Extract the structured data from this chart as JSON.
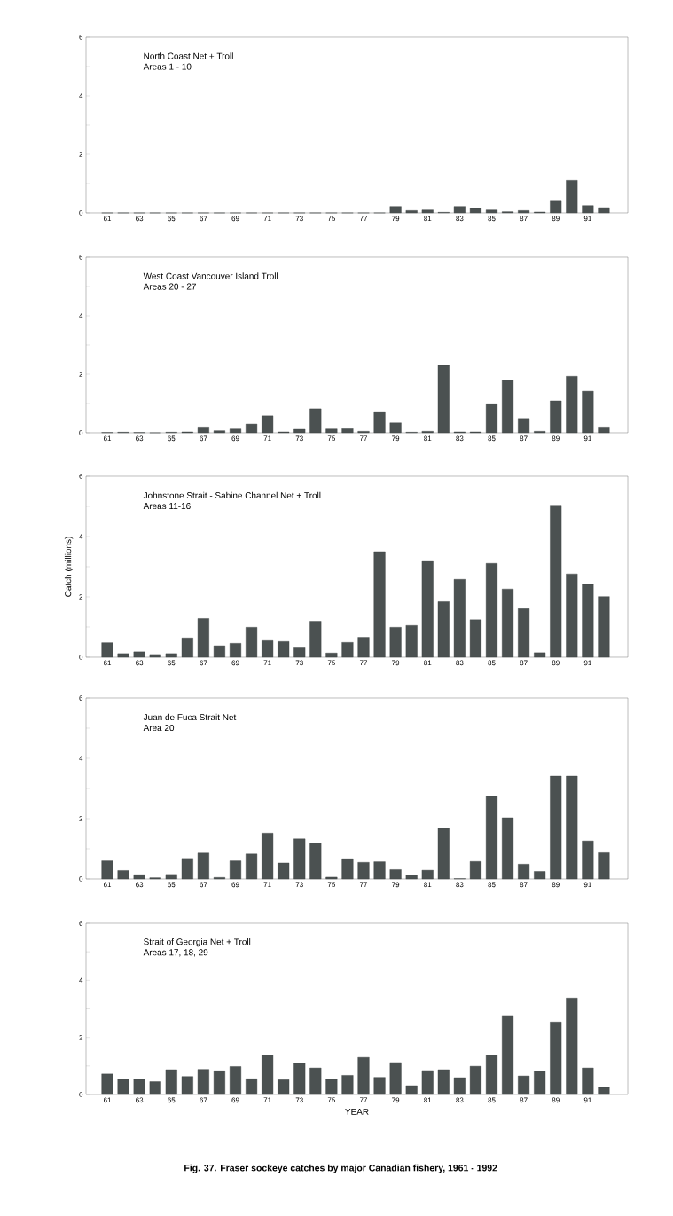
{
  "chart_data": [
    {
      "type": "bar",
      "title": "North Coast Net + Troll",
      "subtitle": "Areas 1 - 10",
      "color": "#4b5151",
      "categories": [
        "61",
        null,
        "63",
        null,
        "65",
        null,
        "67",
        null,
        "69",
        null,
        "71",
        null,
        "73",
        null,
        "75",
        null,
        "77",
        null,
        "79",
        null,
        "81",
        null,
        "83",
        null,
        "85",
        null,
        "87",
        null,
        "89",
        null,
        "91",
        null
      ],
      "values": [
        0,
        0,
        0,
        0,
        0,
        0,
        0,
        0,
        0,
        0,
        0,
        0,
        0,
        0,
        0,
        0,
        0,
        0,
        0.22,
        0.08,
        0.1,
        0.02,
        0.22,
        0.15,
        0.1,
        0.04,
        0.08,
        0.03,
        0.4,
        1.11,
        0.25,
        0.18
      ],
      "ylim": [
        0,
        6
      ],
      "yticks": [
        0,
        {
          "value": 1,
          "label": null
        },
        2,
        {
          "value": 3,
          "label": null
        },
        4,
        {
          "value": 5,
          "label": null
        },
        6
      ]
    },
    {
      "type": "bar",
      "title": "West Coast Vancouver Island Troll",
      "subtitle": "Areas 20 - 27",
      "color": "#4b5151",
      "categories": [
        "61",
        null,
        "63",
        null,
        "65",
        null,
        "67",
        null,
        "69",
        null,
        "71",
        null,
        "73",
        null,
        "75",
        null,
        "77",
        null,
        "79",
        null,
        "81",
        null,
        "83",
        null,
        "85",
        null,
        "87",
        null,
        "89",
        null,
        "91",
        null
      ],
      "values": [
        0.01,
        0.02,
        0.01,
        0,
        0.02,
        0.03,
        0.2,
        0.07,
        0.13,
        0.3,
        0.58,
        0.03,
        0.12,
        0.82,
        0.13,
        0.14,
        0.05,
        0.72,
        0.34,
        0.02,
        0.05,
        2.3,
        0.03,
        0.03,
        0.99,
        1.8,
        0.49,
        0.05,
        1.09,
        1.93,
        1.42,
        0.2
      ],
      "ylim": [
        0,
        6
      ],
      "yticks": [
        0,
        {
          "value": 1,
          "label": null
        },
        2,
        {
          "value": 3,
          "label": null
        },
        4,
        {
          "value": 5,
          "label": null
        },
        6
      ]
    },
    {
      "type": "bar",
      "title": "Johnstone Strait - Sabine Channel Net + Troll",
      "subtitle": "Areas 11-16",
      "ylabel": "Catch (millions)",
      "color": "#4b5151",
      "categories": [
        "61",
        null,
        "63",
        null,
        "65",
        null,
        "67",
        null,
        "69",
        null,
        "71",
        null,
        "73",
        null,
        "75",
        null,
        "77",
        null,
        "79",
        null,
        "81",
        null,
        "83",
        null,
        "85",
        null,
        "87",
        null,
        "89",
        null,
        "91",
        null
      ],
      "values": [
        0.48,
        0.12,
        0.18,
        0.09,
        0.12,
        0.64,
        1.28,
        0.38,
        0.46,
        0.99,
        0.55,
        0.52,
        0.31,
        1.19,
        0.14,
        0.49,
        0.66,
        3.5,
        0.99,
        1.05,
        3.2,
        1.84,
        2.58,
        1.24,
        3.11,
        2.26,
        1.61,
        0.15,
        5.04,
        2.76,
        2.41,
        2.01
      ],
      "ylim": [
        0,
        6
      ],
      "yticks": [
        0,
        {
          "value": 1,
          "label": null
        },
        2,
        {
          "value": 3,
          "label": null
        },
        4,
        {
          "value": 5,
          "label": null
        },
        6
      ]
    },
    {
      "type": "bar",
      "title": "Juan de Fuca Strait Net",
      "subtitle": "Area 20",
      "color": "#4b5151",
      "categories": [
        "61",
        null,
        "63",
        null,
        "65",
        null,
        "67",
        null,
        "69",
        null,
        "71",
        null,
        "73",
        null,
        "75",
        null,
        "77",
        null,
        "79",
        null,
        "81",
        null,
        "83",
        null,
        "85",
        null,
        "87",
        null,
        "89",
        null,
        "91",
        null
      ],
      "values": [
        0.6,
        0.28,
        0.14,
        0.04,
        0.15,
        0.68,
        0.86,
        0.05,
        0.6,
        0.83,
        1.52,
        0.53,
        1.33,
        1.19,
        0.06,
        0.67,
        0.55,
        0.57,
        0.31,
        0.13,
        0.29,
        1.69,
        0.01,
        0.58,
        2.74,
        2.03,
        0.49,
        0.25,
        3.41,
        3.41,
        1.26,
        0.87
      ],
      "ylim": [
        0,
        6
      ],
      "yticks": [
        0,
        {
          "value": 1,
          "label": null
        },
        2,
        {
          "value": 3,
          "label": null
        },
        4,
        {
          "value": 5,
          "label": null
        },
        6
      ]
    },
    {
      "type": "bar",
      "title": "Strait of Georgia Net + Troll",
      "subtitle": "Areas 17, 18, 29",
      "xlabel": "YEAR",
      "color": "#4b5151",
      "categories": [
        "61",
        null,
        "63",
        null,
        "65",
        null,
        "67",
        null,
        "69",
        null,
        "71",
        null,
        "73",
        null,
        "75",
        null,
        "77",
        null,
        "79",
        null,
        "81",
        null,
        "83",
        null,
        "85",
        null,
        "87",
        null,
        "89",
        null,
        "91",
        null
      ],
      "values": [
        0.72,
        0.53,
        0.53,
        0.45,
        0.87,
        0.63,
        0.88,
        0.83,
        0.98,
        0.55,
        1.38,
        0.52,
        1.09,
        0.93,
        0.53,
        0.67,
        1.3,
        0.6,
        1.12,
        0.31,
        0.84,
        0.87,
        0.59,
        0.99,
        1.38,
        2.77,
        0.65,
        0.82,
        2.54,
        3.38,
        0.93,
        0.25
      ],
      "ylim": [
        0,
        6
      ],
      "yticks": [
        0,
        {
          "value": 1,
          "label": null
        },
        2,
        {
          "value": 3,
          "label": null
        },
        4,
        {
          "value": 5,
          "label": null
        },
        6
      ],
      "annotations": [
        "Fig. 37.  Fraser sockeye catches by major Canadian fishery, 1961 - 1992"
      ]
    }
  ]
}
